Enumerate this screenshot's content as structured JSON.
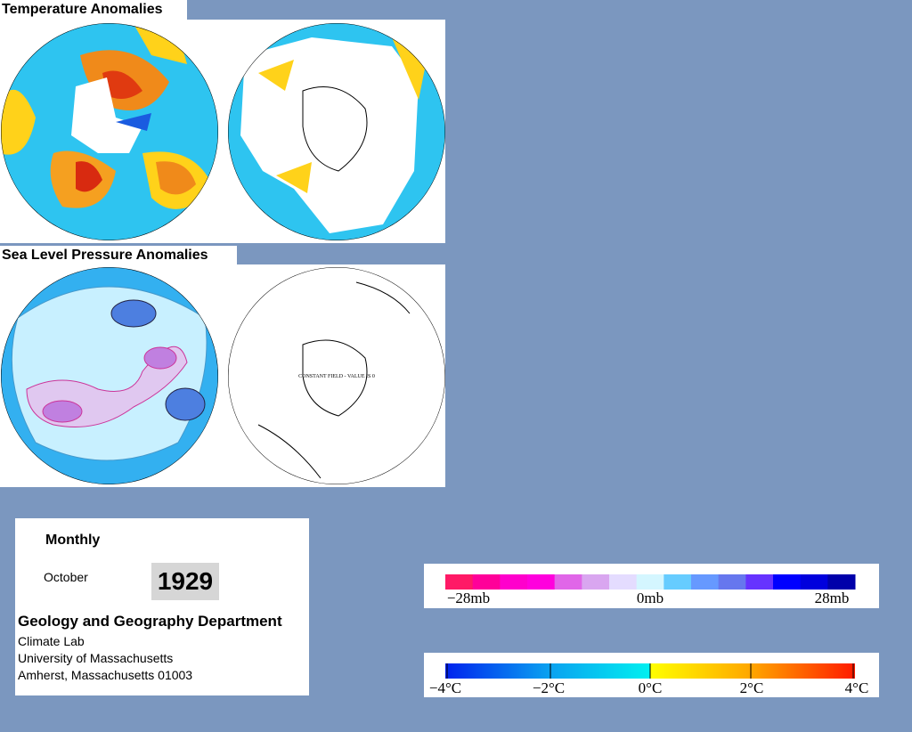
{
  "panels": {
    "temperature": {
      "title": "Temperature Anomalies"
    },
    "pressure": {
      "title": "Sea Level Pressure Anomalies",
      "note": "CONSTANT FIELD - VALUE IS 0"
    }
  },
  "info": {
    "period": "Monthly",
    "month": "October",
    "year": "1929",
    "department": "Geology and Geography Department",
    "lines": [
      "Climate Lab",
      "University of Massachusetts",
      "Amherst, Massachusetts 01003"
    ]
  },
  "legends": {
    "pressure": [
      "−28mb",
      "0mb",
      "28mb"
    ],
    "temperature": [
      "−4°C",
      "−2°C",
      "0°C",
      "2°C",
      "4°C"
    ]
  }
}
